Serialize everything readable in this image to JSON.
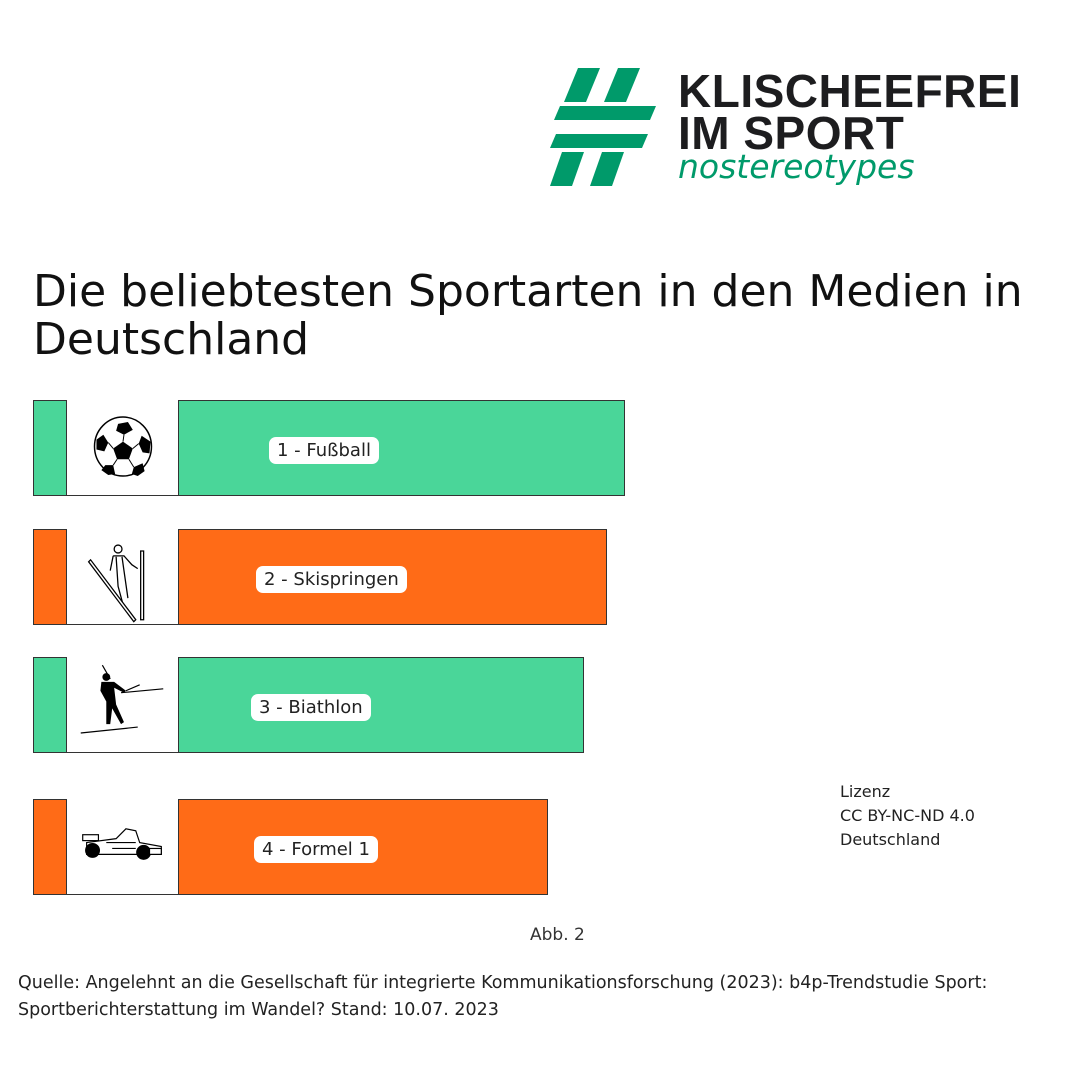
{
  "logo": {
    "line1": "KLISCHEEFREI",
    "line2": "IM SPORT",
    "line3": "nostereotypes",
    "green": "#009a6a",
    "dark": "#1d1d1f"
  },
  "title": "Die beliebtesten Sportarten in den Medien in Deutschland",
  "chart_data": {
    "type": "bar",
    "orientation": "horizontal",
    "title": "Die beliebtesten Sportarten in den Medien in Deutschland",
    "categories": [
      "1 - Fußball",
      "2 - Skispringen",
      "3 - Biathlon",
      "4 - Formel 1"
    ],
    "values_relative_percent": [
      100,
      97,
      93,
      87
    ],
    "colors": [
      "#4ad699",
      "#ff6b17",
      "#4ad699",
      "#ff6b17"
    ],
    "icons": [
      "soccer-ball-icon",
      "ski-jumper-icon",
      "biathlete-icon",
      "formula-one-car-icon"
    ],
    "axes_shown": false,
    "grid": false
  },
  "figure_label": "Abb. 2",
  "license": [
    "Lizenz",
    "CC BY-NC-ND 4.0",
    "Deutschland"
  ],
  "source": "Quelle: Angelehnt an die Gesellschaft für integrierte Kommunikationsforschung (2023): b4p-Trendstudie Sport: Sportberichterstattung im Wandel? Stand: 10.07. 2023"
}
